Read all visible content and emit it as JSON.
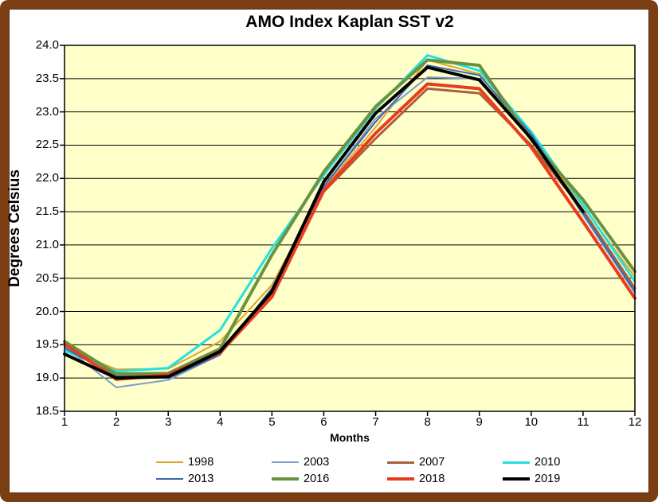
{
  "title": "AMO Index Kaplan SST v2",
  "frame_color": "#7B3E12",
  "chart_data": {
    "type": "line",
    "title": "AMO Index Kaplan SST v2",
    "xlabel": "Months",
    "ylabel": "Degrees Celsius",
    "plot_bg": "#FFFFC9",
    "grid": true,
    "legend_position": "bottom",
    "x": [
      1,
      2,
      3,
      4,
      5,
      6,
      7,
      8,
      9,
      10,
      11,
      12
    ],
    "ylim": [
      18.5,
      24.0
    ],
    "ytick_step": 0.5,
    "y_ticks": [
      "24.0",
      "23.5",
      "23.0",
      "22.5",
      "22.0",
      "21.5",
      "21.0",
      "20.5",
      "20.0",
      "19.5",
      "19.0",
      "18.5"
    ],
    "x_ticks": [
      "1",
      "2",
      "3",
      "4",
      "5",
      "6",
      "7",
      "8",
      "9",
      "10",
      "11",
      "12"
    ],
    "series": [
      {
        "name": "1998",
        "color": "#DFA32B",
        "width": 2,
        "values": [
          19.45,
          19.13,
          19.14,
          19.55,
          20.4,
          21.85,
          22.77,
          23.78,
          23.57,
          22.6,
          21.58,
          20.52
        ]
      },
      {
        "name": "2003",
        "color": "#7D9CCB",
        "width": 2,
        "values": [
          19.47,
          18.86,
          18.97,
          19.35,
          20.35,
          21.88,
          22.9,
          23.52,
          23.5,
          22.64,
          21.45,
          20.28
        ]
      },
      {
        "name": "2007",
        "color": "#A9613B",
        "width": 3,
        "values": [
          19.5,
          19.03,
          19.04,
          19.38,
          20.25,
          21.8,
          22.6,
          23.35,
          23.28,
          22.5,
          21.52,
          20.35
        ]
      },
      {
        "name": "2010",
        "color": "#22E1E1",
        "width": 3,
        "values": [
          19.41,
          19.1,
          19.15,
          19.72,
          20.95,
          22.05,
          23.05,
          23.85,
          23.62,
          22.7,
          21.6,
          20.45
        ]
      },
      {
        "name": "2013",
        "color": "#3A68AE",
        "width": 2,
        "values": [
          19.45,
          19.02,
          19.0,
          19.35,
          20.35,
          21.88,
          22.85,
          23.7,
          23.55,
          22.67,
          21.48,
          20.3
        ]
      },
      {
        "name": "2016",
        "color": "#6B9241",
        "width": 4,
        "values": [
          19.55,
          19.06,
          19.07,
          19.44,
          20.85,
          22.1,
          23.08,
          23.78,
          23.7,
          22.58,
          21.68,
          20.6
        ]
      },
      {
        "name": "2018",
        "color": "#EA3B20",
        "width": 4,
        "values": [
          19.51,
          18.98,
          19.05,
          19.38,
          20.22,
          21.82,
          22.68,
          23.42,
          23.35,
          22.47,
          21.35,
          20.2
        ]
      },
      {
        "name": "2019",
        "color": "#000000",
        "width": 4,
        "values": [
          19.36,
          19.0,
          19.02,
          19.4,
          20.3,
          21.95,
          22.98,
          23.67,
          23.48,
          22.6,
          21.5,
          null
        ]
      }
    ]
  }
}
